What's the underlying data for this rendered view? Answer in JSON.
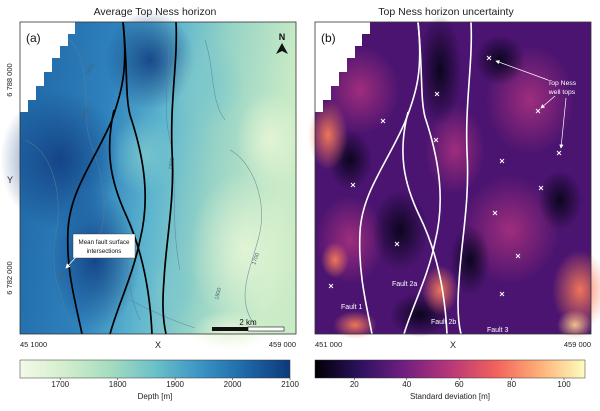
{
  "panels": [
    {
      "title": "Average Top Ness horizon",
      "label": "(a)",
      "north": "N",
      "y_ticks": [
        "6 788 000",
        "6 782 000"
      ],
      "y_label": "Y",
      "x_ticks": [
        "45 1000",
        "459 000"
      ],
      "x_label": "X",
      "annotation": "Mean fault surface intersections",
      "scale_bar": "2 km",
      "contours": [
        "1800",
        "1800",
        "1900",
        "1800",
        "1700",
        "1800",
        "1800"
      ]
    },
    {
      "title": "Top Ness horizon uncertainty",
      "label": "(b)",
      "x_ticks": [
        "451 000",
        "459 000"
      ],
      "x_label": "X",
      "annotation": "Top Ness well tops",
      "fault_labels": [
        "Fault 1",
        "Fault 2a",
        "Fault 2b",
        "Fault 3"
      ]
    }
  ],
  "colorbars": [
    {
      "label": "Depth [m]",
      "ticks": [
        "1700",
        "1800",
        "1900",
        "2000",
        "2100"
      ],
      "range": [
        1630,
        2100
      ],
      "colors": [
        "#f4fae8",
        "#d2eecc",
        "#a6dcc0",
        "#6bc0c8",
        "#3a95c4",
        "#1f68a8",
        "#0c3a7a"
      ]
    },
    {
      "label": "Standard deviation [m]",
      "ticks": [
        "20",
        "40",
        "60",
        "80",
        "100"
      ],
      "range": [
        5,
        108
      ],
      "colors": [
        "#000004",
        "#2c115f",
        "#721f81",
        "#b73779",
        "#f1605d",
        "#feb078",
        "#fcfdbf"
      ]
    }
  ]
}
